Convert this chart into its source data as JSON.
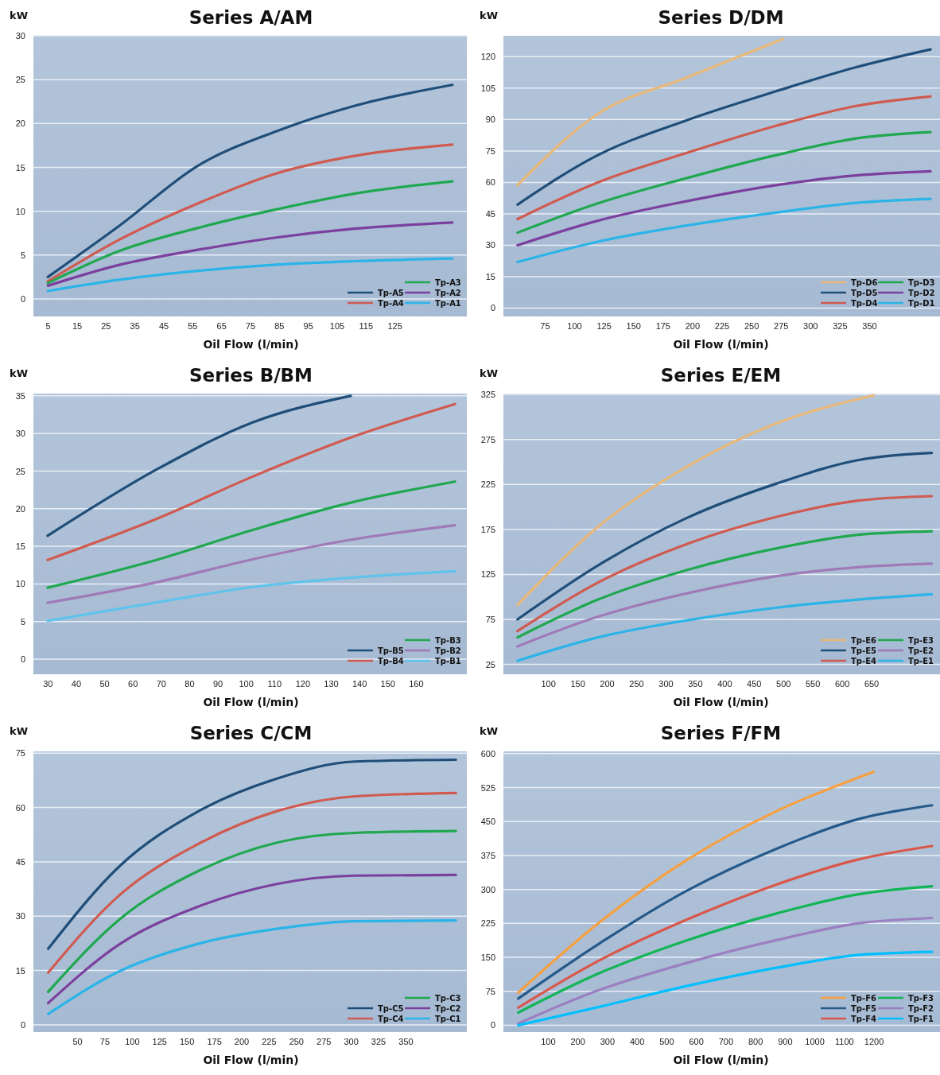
{
  "chart_data": [
    {
      "type": "line",
      "title": "Series A/AM",
      "xlabel": "Oil Flow (l/min)",
      "ylabel": "kW",
      "xlim": [
        0,
        150
      ],
      "xticks": [
        5,
        15,
        25,
        35,
        45,
        55,
        65,
        75,
        85,
        95,
        105,
        115,
        125
      ],
      "ylim": [
        -2,
        30
      ],
      "yticks": [
        0,
        5,
        10,
        15,
        20,
        25,
        30
      ],
      "grid": "y",
      "legend": "bottom right",
      "x": [
        5,
        30,
        57,
        84,
        111,
        145
      ],
      "series": [
        {
          "name": "Tp-A5",
          "color": "#1f4e79",
          "values": [
            2.5,
            8.4,
            15.2,
            19.1,
            22,
            24.4
          ]
        },
        {
          "name": "Tp-A4",
          "color": "#d05a4f",
          "values": [
            2.0,
            6.8,
            10.9,
            14.3,
            16.3,
            17.6
          ]
        },
        {
          "name": "Tp-A3",
          "color": "#1fa84f",
          "values": [
            1.8,
            5.5,
            8.1,
            10.2,
            12,
            13.4
          ]
        },
        {
          "name": "Tp-A2",
          "color": "#7b3f9e",
          "values": [
            1.5,
            3.9,
            5.6,
            7.0,
            8.0,
            8.7
          ]
        },
        {
          "name": "Tp-A1",
          "color": "#2ab4e8",
          "values": [
            0.9,
            2.2,
            3.2,
            3.9,
            4.3,
            4.6
          ]
        }
      ]
    },
    {
      "type": "line",
      "title": "Series D/DM",
      "xlabel": "Oil Flow (l/min)",
      "ylabel": "kW",
      "xlim": [
        40,
        410
      ],
      "xticks": [
        75,
        100,
        125,
        150,
        175,
        200,
        225,
        250,
        275,
        300,
        325,
        350
      ],
      "ylim": [
        -4,
        130
      ],
      "yticks": [
        0,
        15,
        30,
        45,
        60,
        75,
        90,
        105,
        120
      ],
      "grid": "y",
      "legend": "bottom right",
      "x": [
        52,
        120,
        195,
        271,
        339,
        402
      ],
      "series": [
        {
          "name": "Tp-D6",
          "color": "#e9b879",
          "x": [
            52,
            120,
            195,
            277
          ],
          "values": [
            58.7,
            92.7,
            110,
            128.5
          ]
        },
        {
          "name": "Tp-D5",
          "color": "#1f4e79",
          "values": [
            49.4,
            73,
            89.6,
            103.5,
            115,
            123.5
          ]
        },
        {
          "name": "Tp-D4",
          "color": "#d05a4f",
          "values": [
            42.5,
            60,
            74,
            87,
            96.5,
            101
          ]
        },
        {
          "name": "Tp-D3",
          "color": "#1fa84f",
          "values": [
            36,
            50,
            62,
            73,
            81,
            84
          ]
        },
        {
          "name": "Tp-D2",
          "color": "#7b3f9e",
          "values": [
            30,
            41.7,
            51,
            58.7,
            63.3,
            65.3
          ]
        },
        {
          "name": "Tp-D1",
          "color": "#2ab4e8",
          "values": [
            22,
            31.7,
            39.4,
            45.6,
            50.2,
            52.1
          ]
        }
      ]
    },
    {
      "type": "line",
      "title": "Series B/BM",
      "xlabel": "Oil Flow (l/min)",
      "ylabel": "kW",
      "xlim": [
        25,
        178
      ],
      "xticks": [
        30,
        40,
        50,
        60,
        70,
        80,
        90,
        100,
        110,
        120,
        130,
        140,
        150,
        160
      ],
      "ylim": [
        -2,
        35.3
      ],
      "yticks": [
        0,
        5,
        10,
        15,
        20,
        25,
        30,
        35
      ],
      "grid": "y",
      "legend": "bottom right",
      "x": [
        30,
        69.4,
        102.6,
        135.9,
        173.8
      ],
      "series": [
        {
          "name": "Tp-B5",
          "color": "#1f4e79",
          "x": [
            30,
            69.4,
            102.6,
            137
          ],
          "values": [
            16.4,
            25.4,
            31.5,
            35
          ]
        },
        {
          "name": "Tp-B4",
          "color": "#d05a4f",
          "values": [
            13.2,
            18.8,
            24.3,
            29.3,
            33.9
          ]
        },
        {
          "name": "Tp-B3",
          "color": "#1fa84f",
          "values": [
            9.5,
            13.3,
            17.2,
            20.7,
            23.6
          ]
        },
        {
          "name": "Tp-B2",
          "color": "#a07ab8",
          "values": [
            7.5,
            10.3,
            13.3,
            15.8,
            17.8
          ]
        },
        {
          "name": "Tp-B1",
          "color": "#5fc3ec",
          "values": [
            5.1,
            7.6,
            9.6,
            10.8,
            11.7
          ]
        }
      ]
    },
    {
      "type": "line",
      "title": "Series E/EM",
      "xlabel": "Oil Flow (l/min)",
      "ylabel": "kW",
      "xlim": [
        24,
        767
      ],
      "xticks": [
        100,
        150,
        200,
        250,
        300,
        350,
        400,
        450,
        500,
        550,
        600,
        650
      ],
      "ylim": [
        14,
        326
      ],
      "yticks": [
        25,
        75,
        125,
        175,
        225,
        275,
        325
      ],
      "grid": "y",
      "legend": "bottom right",
      "x": [
        48,
        185,
        337,
        489,
        627,
        753
      ],
      "series": [
        {
          "name": "Tp-E6",
          "color": "#e9b879",
          "x": [
            48,
            185,
            337,
            489,
            654
          ],
          "values": [
            91,
            178,
            245,
            293,
            324
          ]
        },
        {
          "name": "Tp-E5",
          "color": "#1f4e79",
          "values": [
            75,
            135,
            188,
            226,
            252,
            260
          ]
        },
        {
          "name": "Tp-E4",
          "color": "#d05a4f",
          "values": [
            62,
            116,
            159,
            189,
            207,
            212
          ]
        },
        {
          "name": "Tp-E3",
          "color": "#1fa84f",
          "values": [
            55,
            97,
            130,
            154,
            169,
            173
          ]
        },
        {
          "name": "Tp-E2",
          "color": "#a07ab8",
          "values": [
            45,
            78,
            104,
            123,
            133,
            137
          ]
        },
        {
          "name": "Tp-E1",
          "color": "#2ab4e8",
          "values": [
            29,
            55,
            74,
            88,
            97,
            103
          ]
        }
      ]
    },
    {
      "type": "line",
      "title": "Series C/CM",
      "xlabel": "Oil Flow (l/min)",
      "ylabel": "kW",
      "xlim": [
        10,
        406
      ],
      "xticks": [
        50,
        75,
        100,
        125,
        150,
        175,
        200,
        225,
        250,
        275,
        300,
        325,
        350
      ],
      "ylim": [
        -2,
        75.5
      ],
      "yticks": [
        0,
        15,
        30,
        45,
        60,
        75
      ],
      "grid": "y",
      "legend": "bottom right",
      "x": [
        23.5,
        89.4,
        161,
        232.5,
        304,
        396
      ],
      "series": [
        {
          "name": "Tp-C5",
          "color": "#1f4e79",
          "values": [
            21,
            44,
            59,
            68,
            72.7,
            73.2
          ]
        },
        {
          "name": "Tp-C4",
          "color": "#d05a4f",
          "values": [
            14.4,
            36,
            50,
            59,
            63.1,
            64
          ]
        },
        {
          "name": "Tp-C3",
          "color": "#1fa84f",
          "values": [
            9.1,
            29.3,
            42.5,
            50.3,
            53,
            53.5
          ]
        },
        {
          "name": "Tp-C2",
          "color": "#7b3f9e",
          "values": [
            6,
            22.4,
            32.7,
            38.9,
            41.2,
            41.4
          ]
        },
        {
          "name": "Tp-C1",
          "color": "#2ab4e8",
          "values": [
            3,
            14.9,
            22.4,
            26.5,
            28.6,
            28.8
          ]
        }
      ]
    },
    {
      "type": "line",
      "title": "Series F/FM",
      "xlabel": "Oil Flow (l/min)",
      "ylabel": "kW",
      "xlim": [
        -50,
        1424
      ],
      "xticks": [
        100,
        200,
        300,
        400,
        500,
        600,
        700,
        800,
        900,
        1000,
        1100,
        1200
      ],
      "ylim": [
        -15,
        605
      ],
      "yticks": [
        0,
        75,
        150,
        225,
        300,
        375,
        450,
        525,
        600
      ],
      "grid": "y",
      "legend": "bottom right",
      "x": [
        0,
        270,
        571,
        872,
        1146,
        1397
      ],
      "series": [
        {
          "name": "Tp-F6",
          "color": "#f7a040",
          "x": [
            0,
            270,
            571,
            872,
            1200
          ],
          "values": [
            72,
            225,
            366,
            473,
            560
          ]
        },
        {
          "name": "Tp-F5",
          "color": "#24598a",
          "values": [
            59,
            179,
            298,
            390,
            455,
            486
          ]
        },
        {
          "name": "Tp-F4",
          "color": "#d9574a",
          "values": [
            39,
            142,
            234,
            311,
            366,
            396
          ]
        },
        {
          "name": "Tp-F3",
          "color": "#12b556",
          "values": [
            28,
            114,
            188,
            247,
            289,
            307
          ]
        },
        {
          "name": "Tp-F2",
          "color": "#9b7fc0",
          "values": [
            4,
            77,
            138,
            188,
            225,
            237
          ]
        },
        {
          "name": "Tp-F1",
          "color": "#00bfff",
          "values": [
            0,
            40,
            87,
            127,
            155,
            162
          ]
        }
      ]
    }
  ]
}
